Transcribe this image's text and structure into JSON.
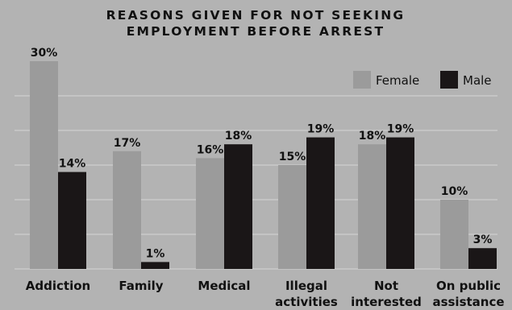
{
  "chart_data": {
    "type": "bar",
    "title": [
      "REASONS GIVEN FOR NOT SEEKING",
      "EMPLOYMENT BEFORE ARREST"
    ],
    "categories": [
      [
        "Addiction"
      ],
      [
        "Family"
      ],
      [
        "Medical"
      ],
      [
        "Illegal",
        "activities"
      ],
      [
        "Not",
        "interested"
      ],
      [
        "On public",
        "assistance"
      ]
    ],
    "series": [
      {
        "name": "Female",
        "color": "#9b9b9b",
        "values": [
          30,
          17,
          16,
          15,
          18,
          10
        ],
        "labels": [
          "30%",
          "17%",
          "16%",
          "15%",
          "18%",
          "10%"
        ]
      },
      {
        "name": "Male",
        "color": "#1a1617",
        "values": [
          14,
          1,
          18,
          19,
          19,
          3
        ],
        "labels": [
          "14%",
          "1%",
          "18%",
          "19%",
          "19%",
          "3%"
        ]
      }
    ],
    "ylim": [
      0,
      30
    ],
    "grid": true,
    "legend_position": "top-right",
    "background": "#b3b3b3",
    "gridline_color": "#d4d4d4"
  }
}
